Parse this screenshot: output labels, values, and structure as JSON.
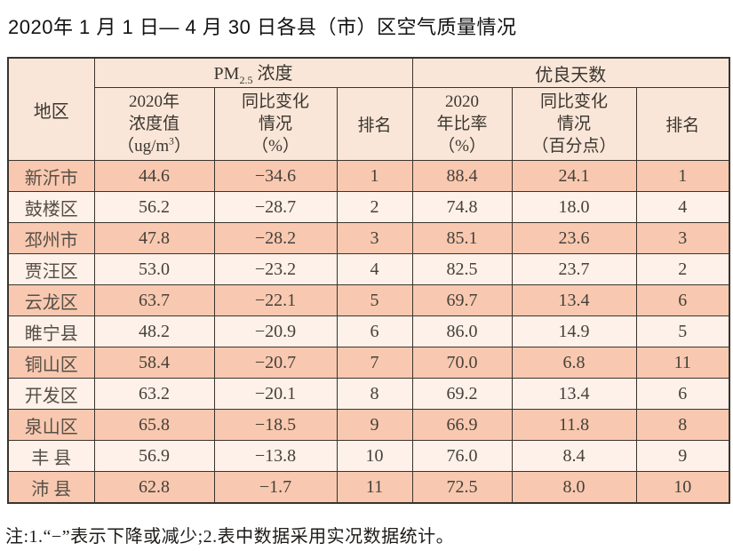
{
  "page": {
    "title": "2020年 1 月 1 日— 4 月 30 日各县（市）区空气质量情况",
    "note": "注:1.“−”表示下降或减少;2.表中数据采用实况数据统计。"
  },
  "colors": {
    "row_odd": "#f8c9b0",
    "row_even": "#fdf1e9",
    "header_bg": "#f9e6d8",
    "border": "#3a342d"
  },
  "table": {
    "col_region": "地区",
    "group_pm": {
      "prefix": "PM",
      "sub": "2.5",
      "suffix": " 浓度"
    },
    "group_good": "优良天数",
    "sub": {
      "pm_value": {
        "l1": "2020年",
        "l2": "浓度值",
        "l3a": "（ug/m",
        "l3sup": "3",
        "l3b": "）"
      },
      "pm_change": {
        "l1": "同比变化",
        "l2": "情况",
        "l3": "（%）"
      },
      "pm_rank": "排名",
      "good_ratio": {
        "l1": "2020",
        "l2": "年比率",
        "l3": "（%）"
      },
      "good_change": {
        "l1": "同比变化",
        "l2": "情况",
        "l3": "（百分点）"
      },
      "good_rank": "排名"
    },
    "rows": [
      {
        "region": "新沂市",
        "pm_value": "44.6",
        "pm_change": "−34.6",
        "pm_rank": "1",
        "good_ratio": "88.4",
        "good_change": "24.1",
        "good_rank": "1"
      },
      {
        "region": "鼓楼区",
        "pm_value": "56.2",
        "pm_change": "−28.7",
        "pm_rank": "2",
        "good_ratio": "74.8",
        "good_change": "18.0",
        "good_rank": "4"
      },
      {
        "region": "邳州市",
        "pm_value": "47.8",
        "pm_change": "−28.2",
        "pm_rank": "3",
        "good_ratio": "85.1",
        "good_change": "23.6",
        "good_rank": "3"
      },
      {
        "region": "贾汪区",
        "pm_value": "53.0",
        "pm_change": "−23.2",
        "pm_rank": "4",
        "good_ratio": "82.5",
        "good_change": "23.7",
        "good_rank": "2"
      },
      {
        "region": "云龙区",
        "pm_value": "63.7",
        "pm_change": "−22.1",
        "pm_rank": "5",
        "good_ratio": "69.7",
        "good_change": "13.4",
        "good_rank": "6"
      },
      {
        "region": "睢宁县",
        "pm_value": "48.2",
        "pm_change": "−20.9",
        "pm_rank": "6",
        "good_ratio": "86.0",
        "good_change": "14.9",
        "good_rank": "5"
      },
      {
        "region": "铜山区",
        "pm_value": "58.4",
        "pm_change": "−20.7",
        "pm_rank": "7",
        "good_ratio": "70.0",
        "good_change": "6.8",
        "good_rank": "11"
      },
      {
        "region": "开发区",
        "pm_value": "63.2",
        "pm_change": "−20.1",
        "pm_rank": "8",
        "good_ratio": "69.2",
        "good_change": "13.4",
        "good_rank": "6"
      },
      {
        "region": "泉山区",
        "pm_value": "65.8",
        "pm_change": "−18.5",
        "pm_rank": "9",
        "good_ratio": "66.9",
        "good_change": "11.8",
        "good_rank": "8"
      },
      {
        "region": "丰 县",
        "pm_value": "56.9",
        "pm_change": "−13.8",
        "pm_rank": "10",
        "good_ratio": "76.0",
        "good_change": "8.4",
        "good_rank": "9"
      },
      {
        "region": "沛 县",
        "pm_value": "62.8",
        "pm_change": "−1.7",
        "pm_rank": "11",
        "good_ratio": "72.5",
        "good_change": "8.0",
        "good_rank": "10"
      }
    ]
  }
}
